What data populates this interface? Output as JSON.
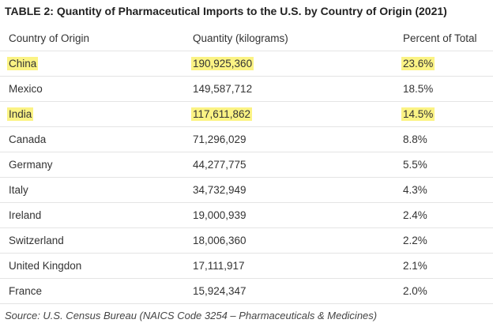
{
  "title": "TABLE 2: Quantity of Pharmaceutical Imports to the U.S. by Country of Origin (2021)",
  "headers": [
    "Country of Origin",
    "Quantity (kilograms)",
    "Percent of Total"
  ],
  "rows": [
    {
      "country": "China",
      "quantity": "190,925,360",
      "percent": "23.6%",
      "highlighted": true
    },
    {
      "country": "Mexico",
      "quantity": "149,587,712",
      "percent": "18.5%",
      "highlighted": false
    },
    {
      "country": "India",
      "quantity": "117,611,862",
      "percent": "14.5%",
      "highlighted": true
    },
    {
      "country": "Canada",
      "quantity": "71,296,029",
      "percent": "8.8%",
      "highlighted": false
    },
    {
      "country": "Germany",
      "quantity": "44,277,775",
      "percent": "5.5%",
      "highlighted": false
    },
    {
      "country": "Italy",
      "quantity": "34,732,949",
      "percent": "4.3%",
      "highlighted": false
    },
    {
      "country": "Ireland",
      "quantity": "19,000,939",
      "percent": "2.4%",
      "highlighted": false
    },
    {
      "country": "Switzerland",
      "quantity": "18,006,360",
      "percent": "2.2%",
      "highlighted": false
    },
    {
      "country": "United Kingdon",
      "quantity": "17,111,917",
      "percent": "2.1%",
      "highlighted": false
    },
    {
      "country": "France",
      "quantity": "15,924,347",
      "percent": "2.0%",
      "highlighted": false
    }
  ],
  "source": "Source: U.S. Census Bureau (NAICS Code 3254 – Pharmaceuticals & Medicines)",
  "colors": {
    "highlight": "#fbf384",
    "divider": "#e4e4e4",
    "text": "#333333"
  }
}
